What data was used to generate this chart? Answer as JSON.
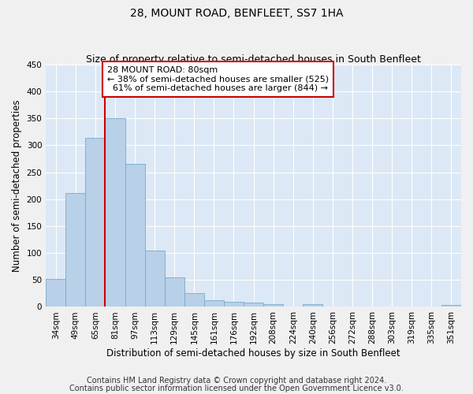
{
  "title": "28, MOUNT ROAD, BENFLEET, SS7 1HA",
  "subtitle": "Size of property relative to semi-detached houses in South Benfleet",
  "xlabel": "Distribution of semi-detached houses by size in South Benfleet",
  "ylabel": "Number of semi-detached properties",
  "categories": [
    "34sqm",
    "49sqm",
    "65sqm",
    "81sqm",
    "97sqm",
    "113sqm",
    "129sqm",
    "145sqm",
    "161sqm",
    "176sqm",
    "192sqm",
    "208sqm",
    "224sqm",
    "240sqm",
    "256sqm",
    "272sqm",
    "288sqm",
    "303sqm",
    "319sqm",
    "335sqm",
    "351sqm"
  ],
  "values": [
    52,
    212,
    314,
    350,
    266,
    105,
    55,
    26,
    12,
    10,
    8,
    5,
    0,
    5,
    0,
    0,
    0,
    0,
    0,
    0,
    4
  ],
  "bar_color": "#b8d0e8",
  "bar_edge_color": "#7aaac8",
  "property_sqm": 80,
  "pct_smaller": 38,
  "n_smaller": 525,
  "pct_larger": 61,
  "n_larger": 844,
  "annotation_box_color": "#ffffff",
  "annotation_box_edge_color": "#cc0000",
  "property_line_color": "#cc0000",
  "ylim": [
    0,
    450
  ],
  "yticks": [
    0,
    50,
    100,
    150,
    200,
    250,
    300,
    350,
    400,
    450
  ],
  "footnote1": "Contains HM Land Registry data © Crown copyright and database right 2024.",
  "footnote2": "Contains public sector information licensed under the Open Government Licence v3.0.",
  "background_color": "#dce8f5",
  "grid_color": "#ffffff",
  "title_fontsize": 10,
  "subtitle_fontsize": 9,
  "axis_label_fontsize": 8.5,
  "tick_fontsize": 7.5,
  "annotation_fontsize": 8,
  "footnote_fontsize": 7
}
